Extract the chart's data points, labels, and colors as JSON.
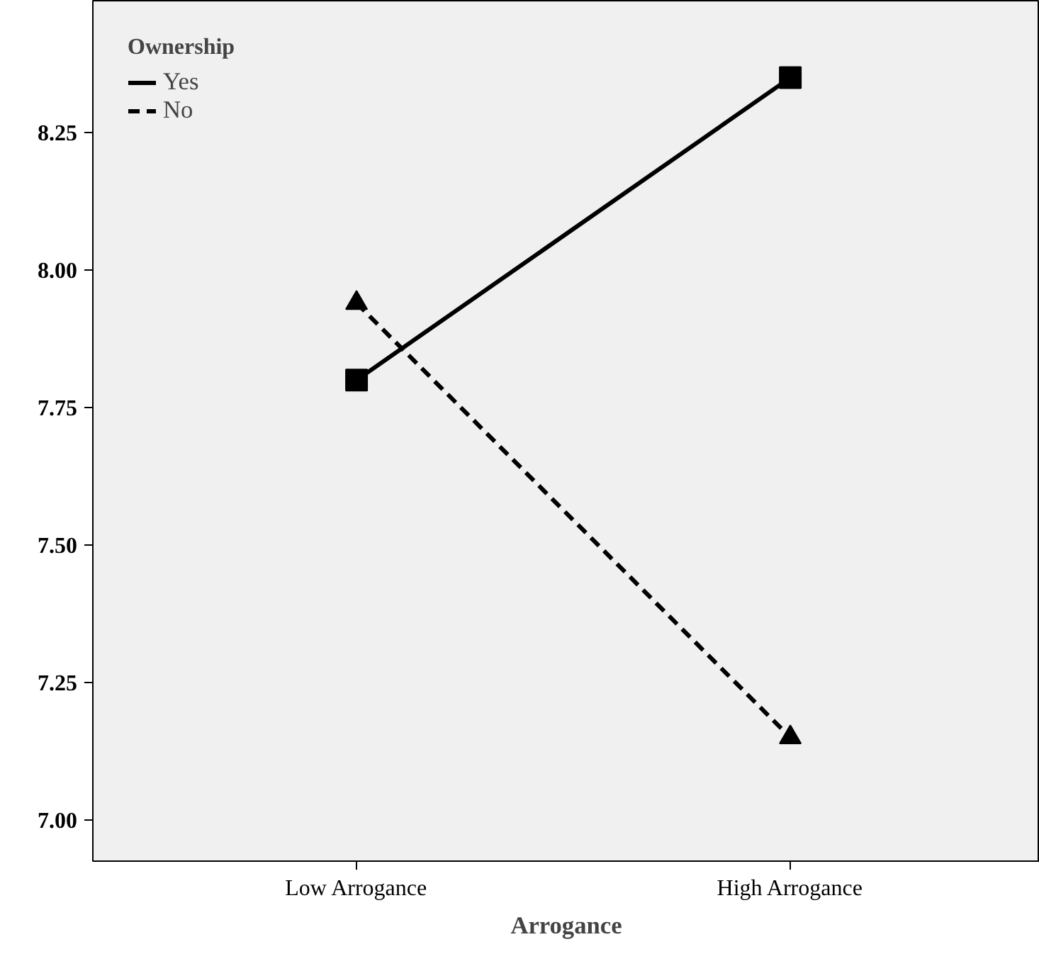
{
  "chart_data": {
    "type": "line",
    "xlabel": "Arrogance",
    "legend_title": "Ownership",
    "categories": [
      "Low Arrogance",
      "High Arrogance"
    ],
    "series": [
      {
        "name": "Yes",
        "color": "#000000",
        "values": [
          7.8,
          8.35
        ],
        "marker": "square",
        "line_style": "solid"
      },
      {
        "name": "No",
        "color": "#000000",
        "values": [
          7.94,
          7.15
        ],
        "marker": "triangle",
        "line_style": "dashed"
      }
    ],
    "ylim": [
      6.925,
      8.49
    ],
    "yticks": [
      {
        "value": 7.0,
        "label": "7.00"
      },
      {
        "value": 7.25,
        "label": "7.25"
      },
      {
        "value": 7.5,
        "label": "7.50"
      },
      {
        "value": 7.75,
        "label": "7.75"
      },
      {
        "value": 8.0,
        "label": "8.00"
      },
      {
        "value": 8.25,
        "label": "8.25"
      }
    ],
    "grid": false,
    "legend": "top left"
  }
}
